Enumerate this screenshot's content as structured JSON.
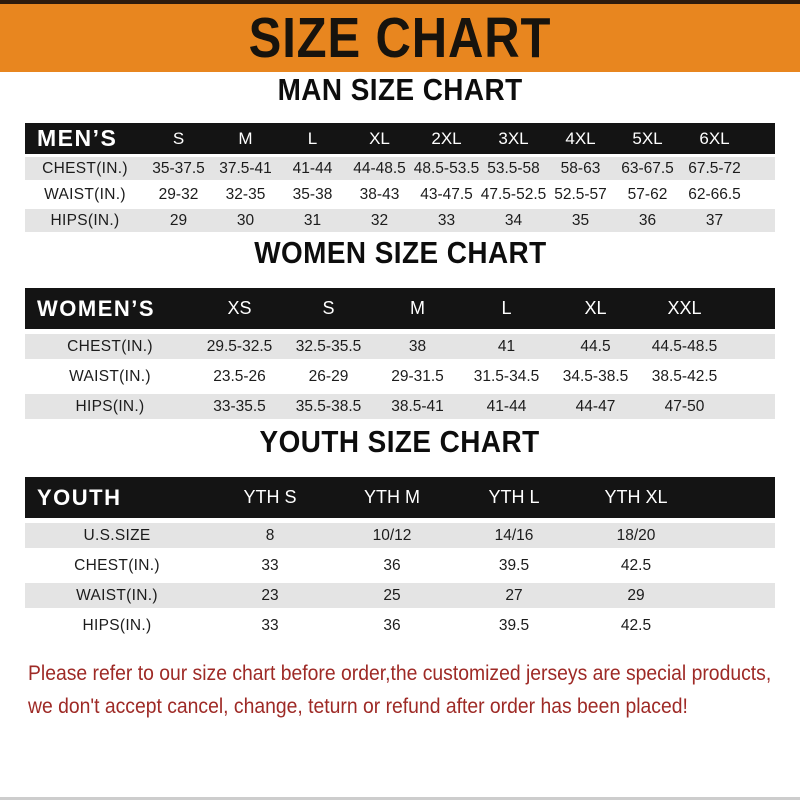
{
  "banner": {
    "title": "SIZE CHART"
  },
  "colors": {
    "banner_orange": "#e8861f",
    "top_strip_brown": "#2e1b0d",
    "header_black": "#141414",
    "row_gray": "#e4e4e4",
    "notice_red": "#9e2a26"
  },
  "chart_data": [
    {
      "type": "table",
      "title": "MAN SIZE CHART",
      "header_label": "MEN’S",
      "columns": [
        "S",
        "M",
        "L",
        "XL",
        "2XL",
        "3XL",
        "4XL",
        "5XL",
        "6XL"
      ],
      "rows": [
        {
          "label": "CHEST(IN.)",
          "values": [
            "35-37.5",
            "37.5-41",
            "41-44",
            "44-48.5",
            "48.5-53.5",
            "53.5-58",
            "58-63",
            "63-67.5",
            "67.5-72"
          ]
        },
        {
          "label": "WAIST(IN.)",
          "values": [
            "29-32",
            "32-35",
            "35-38",
            "38-43",
            "43-47.5",
            "47.5-52.5",
            "52.5-57",
            "57-62",
            "62-66.5"
          ]
        },
        {
          "label": "HIPS(IN.)",
          "values": [
            "29",
            "30",
            "31",
            "32",
            "33",
            "34",
            "35",
            "36",
            "37"
          ]
        }
      ]
    },
    {
      "type": "table",
      "title": "WOMEN SIZE CHART",
      "header_label": "WOMEN’S",
      "columns": [
        "XS",
        "S",
        "M",
        "L",
        "XL",
        "XXL"
      ],
      "rows": [
        {
          "label": "CHEST(IN.)",
          "values": [
            "29.5-32.5",
            "32.5-35.5",
            "38",
            "41",
            "44.5",
            "44.5-48.5"
          ]
        },
        {
          "label": "WAIST(IN.)",
          "values": [
            "23.5-26",
            "26-29",
            "29-31.5",
            "31.5-34.5",
            "34.5-38.5",
            "38.5-42.5"
          ]
        },
        {
          "label": "HIPS(IN.)",
          "values": [
            "33-35.5",
            "35.5-38.5",
            "38.5-41",
            "41-44",
            "44-47",
            "47-50"
          ]
        }
      ]
    },
    {
      "type": "table",
      "title": "YOUTH SIZE CHART",
      "header_label": "YOUTH",
      "columns": [
        "YTH S",
        "YTH M",
        "YTH L",
        "YTH XL"
      ],
      "rows": [
        {
          "label": "U.S.SIZE",
          "values": [
            "8",
            "10/12",
            "14/16",
            "18/20"
          ]
        },
        {
          "label": "CHEST(IN.)",
          "values": [
            "33",
            "36",
            "39.5",
            "42.5"
          ]
        },
        {
          "label": "WAIST(IN.)",
          "values": [
            "23",
            "25",
            "27",
            "29"
          ]
        },
        {
          "label": "HIPS(IN.)",
          "values": [
            "33",
            "36",
            "39.5",
            "42.5"
          ]
        }
      ]
    }
  ],
  "footer": {
    "line1": "Please refer to our size chart before order,the customized jerseys are special products,",
    "line2": "we don't accept cancel, change, teturn or refund after order has been placed!"
  }
}
